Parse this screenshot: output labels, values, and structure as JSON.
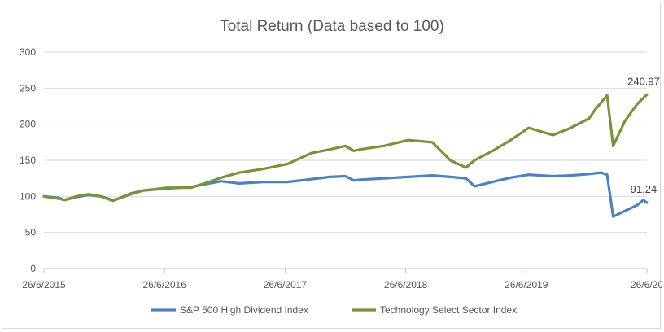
{
  "chart_data": {
    "type": "line",
    "title": "Total Return (Data based to 100)",
    "xlabel": "",
    "ylabel": "",
    "ylim": [
      0,
      300
    ],
    "y_ticks": [
      0,
      50,
      100,
      150,
      200,
      250,
      300
    ],
    "x_tick_labels": [
      "26/6/2015",
      "26/6/2016",
      "26/6/2017",
      "26/6/2018",
      "26/6/2019",
      "26/6/20"
    ],
    "x_range_years": [
      2015.48,
      2020.48
    ],
    "grid": "horizontal",
    "legend_position": "bottom",
    "annotations": [
      {
        "series": "Technology Select Sector Index",
        "label": "240.97"
      },
      {
        "series": "S&P 500 High Dividend Index",
        "label": "91.24"
      }
    ],
    "series": [
      {
        "name": "S&P 500 High Dividend Index",
        "color": "#4f81bd",
        "x": [
          2015.48,
          2015.6,
          2015.65,
          2015.75,
          2015.85,
          2015.95,
          2016.05,
          2016.1,
          2016.2,
          2016.3,
          2016.5,
          2016.7,
          2016.85,
          2016.95,
          2017.1,
          2017.3,
          2017.5,
          2017.7,
          2017.85,
          2017.98,
          2018.05,
          2018.1,
          2018.3,
          2018.5,
          2018.7,
          2018.85,
          2018.98,
          2019.05,
          2019.2,
          2019.35,
          2019.5,
          2019.7,
          2019.85,
          2020.0,
          2020.1,
          2020.15,
          2020.2,
          2020.3,
          2020.4,
          2020.45,
          2020.48
        ],
        "y": [
          100,
          98,
          95,
          99,
          102,
          100,
          95,
          97,
          104,
          108,
          111,
          113,
          118,
          121,
          118,
          120,
          120,
          124,
          127,
          128,
          122,
          123,
          125,
          127,
          129,
          127,
          125,
          114,
          120,
          126,
          130,
          128,
          129,
          131,
          133,
          130,
          72,
          80,
          88,
          95,
          91.24
        ]
      },
      {
        "name": "Technology Select Sector Index",
        "color": "#77933c",
        "x": [
          2015.48,
          2015.6,
          2015.65,
          2015.75,
          2015.85,
          2015.95,
          2016.05,
          2016.1,
          2016.2,
          2016.3,
          2016.5,
          2016.7,
          2016.85,
          2016.95,
          2017.1,
          2017.3,
          2017.5,
          2017.7,
          2017.85,
          2017.98,
          2018.05,
          2018.1,
          2018.3,
          2018.5,
          2018.7,
          2018.85,
          2018.98,
          2019.05,
          2019.2,
          2019.35,
          2019.5,
          2019.7,
          2019.85,
          2020.0,
          2020.05,
          2020.1,
          2020.15,
          2020.2,
          2020.3,
          2020.4,
          2020.48
        ],
        "y": [
          100,
          97,
          95,
          100,
          103,
          100,
          94,
          97,
          103,
          108,
          112,
          112,
          120,
          126,
          133,
          138,
          145,
          160,
          165,
          170,
          163,
          165,
          170,
          178,
          175,
          150,
          140,
          150,
          163,
          178,
          195,
          185,
          195,
          208,
          220,
          230,
          240,
          170,
          205,
          228,
          240.97
        ]
      }
    ]
  }
}
